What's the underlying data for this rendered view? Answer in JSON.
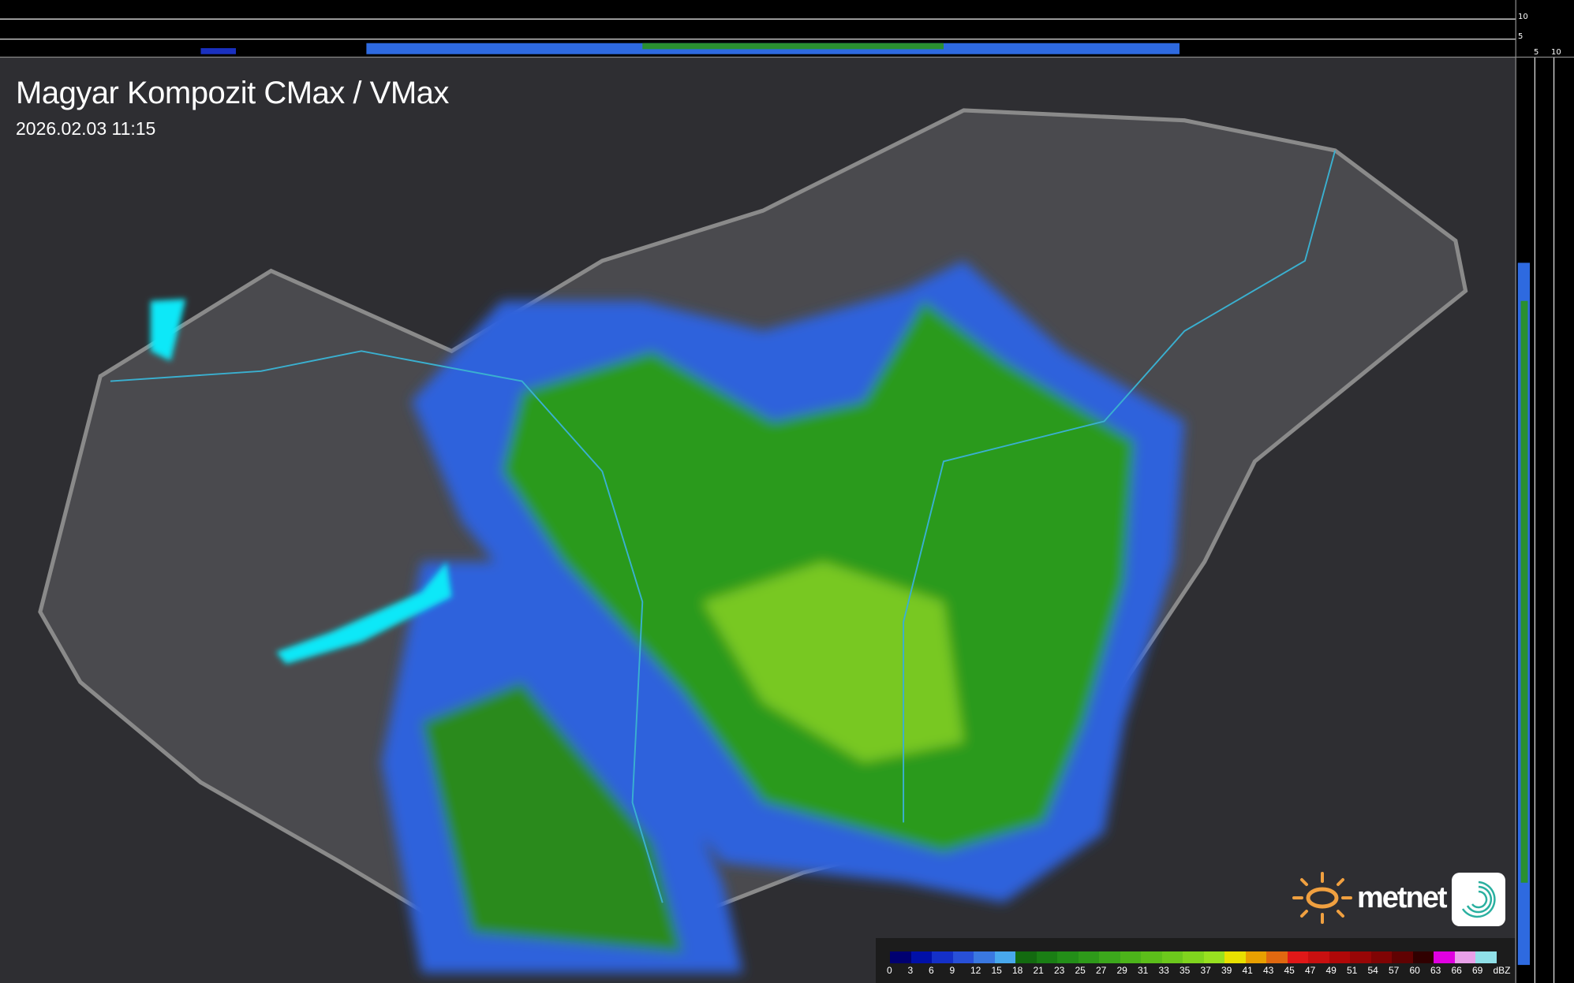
{
  "header": {
    "title": "Magyar Kompozit CMax / VMax",
    "timestamp": "2026.02.03 11:15"
  },
  "profile_axes": {
    "top_labels": [
      "10",
      "5"
    ],
    "side_labels": [
      "5",
      "10"
    ]
  },
  "legend": {
    "unit": "dBZ",
    "values": [
      "0",
      "3",
      "6",
      "9",
      "12",
      "15",
      "18",
      "21",
      "23",
      "25",
      "27",
      "29",
      "31",
      "33",
      "35",
      "37",
      "39",
      "41",
      "43",
      "45",
      "47",
      "49",
      "51",
      "54",
      "57",
      "60",
      "63",
      "66",
      "69"
    ],
    "colors": [
      "#000070",
      "#0010a8",
      "#1430c8",
      "#2850d8",
      "#3a78e0",
      "#48a8ec",
      "#136a10",
      "#1a7e14",
      "#238e18",
      "#2e9a1a",
      "#3ca81c",
      "#4cb41a",
      "#5cbe1a",
      "#6cc81c",
      "#80d41e",
      "#98e020",
      "#e8e000",
      "#e8a000",
      "#e06810",
      "#e01818",
      "#c81010",
      "#b00808",
      "#980606",
      "#800404",
      "#600202",
      "#300000",
      "#e000e0",
      "#e8a0e8",
      "#90e0e8"
    ]
  },
  "branding": {
    "logo_text": "metnet",
    "sun_color": "#f0a040",
    "app_color": "#2ab0a0"
  },
  "colors": {
    "background": "#2e2e32",
    "border": "#8a8a8a",
    "river": "#3ab0d0",
    "lake": "#10e8f8"
  }
}
